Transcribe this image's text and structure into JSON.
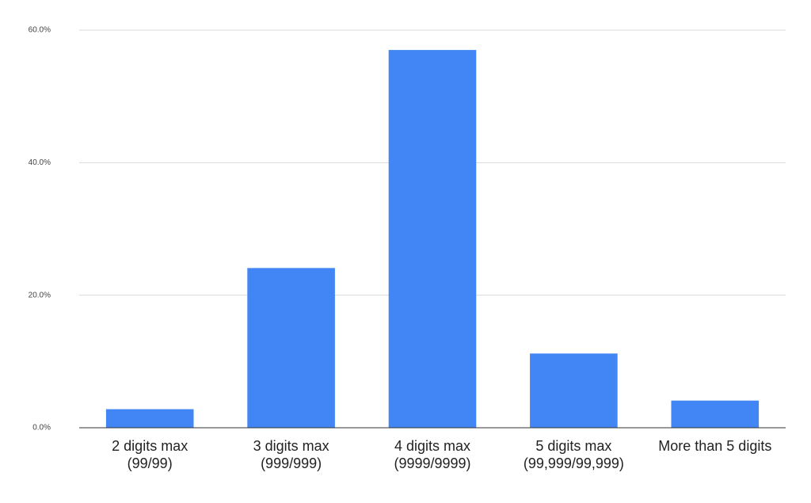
{
  "chart_data": {
    "type": "bar",
    "categories": [
      "2 digits max (99/99)",
      "3 digits max (999/999)",
      "4 digits max (9999/9999)",
      "5 digits max (99,999/99,999)",
      "More than 5 digits"
    ],
    "values": [
      2.8,
      24.1,
      57.0,
      11.2,
      4.1
    ],
    "color": "#4285f4",
    "ylim": [
      0,
      60
    ],
    "yticks": [
      {
        "value": 0,
        "label": "0.0%"
      },
      {
        "value": 20,
        "label": "20.0%"
      },
      {
        "value": 40,
        "label": "40.0%"
      },
      {
        "value": 60,
        "label": "60.0%"
      }
    ],
    "grid": true
  }
}
